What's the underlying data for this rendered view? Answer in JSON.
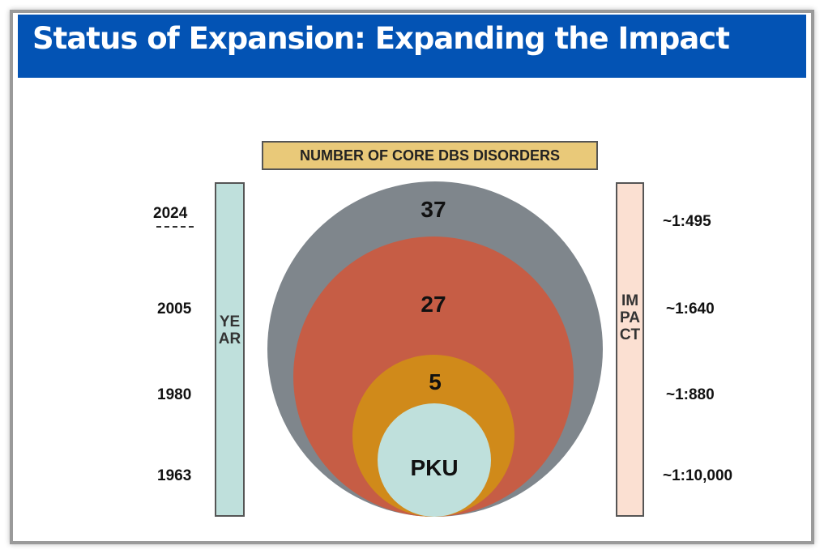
{
  "title": "Status of Expansion: Expanding the Impact",
  "core_label": "NUMBER OF CORE DBS DISORDERS",
  "year_axis": "YEAR",
  "impact_axis": "IMPACT",
  "years": [
    "2024",
    "2005",
    "1980",
    "1963"
  ],
  "impacts": [
    "~1:495",
    "~1:640",
    "~1:880",
    "~1:10,000"
  ],
  "circles": [
    {
      "label": "37",
      "color": "#7f868c"
    },
    {
      "label": "27",
      "color": "#c65d45"
    },
    {
      "label": "5",
      "color": "#d08a1a"
    },
    {
      "label": "PKU",
      "color": "#bfe0dc"
    }
  ],
  "colors": {
    "header": "#0353b4",
    "year_bar": "#bfe0dc",
    "impact_bar": "#fbe0d2",
    "label_box": "#e9c979"
  }
}
